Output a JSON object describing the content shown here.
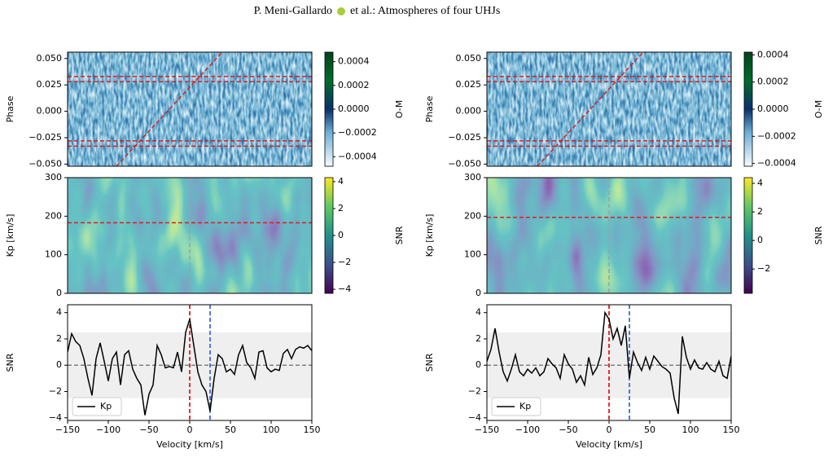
{
  "header": {
    "author": "P. Meni-Gallardo",
    "title": "et al.: Atmospheres of four UHJs"
  },
  "chart_data": [
    {
      "type": "heatmap",
      "texture": "blues",
      "ylabel": "Phase",
      "colorbar_label": "O-M",
      "xlim": [
        -150,
        150
      ],
      "ylim": [
        -0.052,
        0.056
      ],
      "yticks": [
        {
          "value": 0.05,
          "label": "0.050"
        },
        0.025,
        {
          "value": 0,
          "label": "0.000"
        },
        {
          "value": -0.025,
          "label": "−0.025"
        },
        {
          "value": -0.05,
          "label": "−0.050"
        }
      ],
      "clim": [
        -0.00048,
        0.00048
      ],
      "cticks": [
        0.0004,
        0.0002,
        {
          "value": 0,
          "label": "0.0000"
        },
        {
          "value": -0.0002,
          "label": "−0.0002"
        },
        {
          "value": -0.0004,
          "label": "−0.0004"
        }
      ],
      "hlines": [
        0.033,
        0.028,
        -0.028,
        -0.033
      ],
      "line_color": "#e41a1c",
      "track": {
        "x": [
          -90,
          40
        ],
        "y": [
          -0.052,
          0.056
        ]
      }
    },
    {
      "type": "heatmap",
      "texture": "viridis",
      "ylabel": "Kp [km/s]",
      "colorbar_label": "SNR",
      "xlim": [
        -150,
        150
      ],
      "ylim": [
        0,
        300
      ],
      "yticks": [
        0,
        100,
        200,
        300
      ],
      "clim": [
        -4.3,
        4.3
      ],
      "cticks": [
        4,
        2,
        0,
        {
          "value": -2,
          "label": "−2"
        },
        {
          "value": -4,
          "label": "−4"
        }
      ],
      "hlines": [
        183
      ],
      "line_color": "#e41a1c",
      "vlines": [
        0
      ],
      "vline_color": "#a0a0a0"
    },
    {
      "type": "line",
      "ylabel": "SNR",
      "xlabel": "Velocity [km/s]",
      "xlim": [
        -150,
        150
      ],
      "ylim": [
        -4.2,
        4.6
      ],
      "xticks": [
        {
          "value": -150,
          "label": "−150"
        },
        {
          "value": -100,
          "label": "−100"
        },
        {
          "value": -50,
          "label": "−50"
        },
        0,
        50,
        100,
        150
      ],
      "yticks": [
        {
          "value": -4,
          "label": "−4"
        },
        {
          "value": -2,
          "label": "−2"
        },
        0,
        2,
        4
      ],
      "band": [
        -2.5,
        2.5
      ],
      "hlines": [
        0
      ],
      "hline_color": "#808080",
      "vlines": [
        {
          "value": 0,
          "color": "#e41a1c"
        },
        {
          "value": 25,
          "color": "#4169e1"
        }
      ],
      "legend": "lower left",
      "x": [
        -150,
        -145,
        -140,
        -135,
        -130,
        -125,
        -120,
        -115,
        -110,
        -105,
        -100,
        -95,
        -90,
        -85,
        -80,
        -75,
        -70,
        -65,
        -60,
        -55,
        -50,
        -45,
        -40,
        -35,
        -30,
        -25,
        -20,
        -15,
        -10,
        -5,
        0,
        5,
        10,
        15,
        20,
        25,
        30,
        35,
        40,
        45,
        50,
        55,
        60,
        65,
        70,
        75,
        80,
        85,
        90,
        95,
        100,
        105,
        110,
        115,
        120,
        125,
        130,
        135,
        140,
        145,
        150
      ],
      "series": [
        {
          "name": "Kp",
          "color": "#000000",
          "values": [
            1.0,
            2.4,
            1.8,
            1.5,
            0.5,
            -1.0,
            -2.3,
            0.5,
            1.7,
            0.3,
            -1.2,
            0.5,
            1.0,
            -1.5,
            0.8,
            1.1,
            -0.3,
            -1.0,
            -1.5,
            -3.8,
            -2.2,
            -1.5,
            1.5,
            0.8,
            -0.2,
            -0.1,
            -0.2,
            1.0,
            -0.5,
            2.5,
            3.5,
            1.5,
            -0.5,
            -1.5,
            -2.0,
            -3.5,
            -1.0,
            0.8,
            0.5,
            -0.5,
            -0.3,
            -0.7,
            0.8,
            1.5,
            0.2,
            -0.2,
            -1.0,
            1.0,
            1.1,
            -0.2,
            -0.5,
            -0.3,
            -0.4,
            0.9,
            1.2,
            0.5,
            1.2,
            1.4,
            1.3,
            1.5,
            1.1
          ]
        }
      ]
    },
    {
      "type": "heatmap",
      "texture": "blues",
      "ylabel": "Phase",
      "colorbar_label": "O-M",
      "xlim": [
        -150,
        150
      ],
      "ylim": [
        -0.052,
        0.056
      ],
      "yticks": [
        {
          "value": 0.05,
          "label": "0.050"
        },
        0.025,
        {
          "value": 0,
          "label": "0.000"
        },
        {
          "value": -0.025,
          "label": "−0.025"
        },
        {
          "value": -0.05,
          "label": "−0.050"
        }
      ],
      "clim": [
        -0.00042,
        0.00042
      ],
      "cticks": [
        0.0004,
        0.0002,
        {
          "value": 0,
          "label": "0.0000"
        },
        {
          "value": -0.0002,
          "label": "−0.0002"
        },
        {
          "value": -0.0004,
          "label": "−0.0004"
        }
      ],
      "hlines": [
        0.033,
        0.028,
        -0.028,
        -0.033
      ],
      "line_color": "#e41a1c",
      "track": {
        "x": [
          -88,
          42
        ],
        "y": [
          -0.052,
          0.056
        ]
      }
    },
    {
      "type": "heatmap",
      "texture": "viridis2",
      "ylabel": "Kp [km/s]",
      "colorbar_label": "SNR",
      "xlim": [
        -150,
        150
      ],
      "ylim": [
        0,
        300
      ],
      "yticks": [
        0,
        100,
        200,
        300
      ],
      "clim": [
        -3.7,
        4.4
      ],
      "cticks": [
        4,
        2,
        0,
        {
          "value": -2,
          "label": "−2"
        }
      ],
      "hlines": [
        197
      ],
      "line_color": "#e41a1c",
      "vlines": [
        0
      ],
      "vline_color": "#a0a0a0"
    },
    {
      "type": "line",
      "ylabel": "SNR",
      "xlabel": "Velocity [km/s]",
      "xlim": [
        -150,
        150
      ],
      "ylim": [
        -4.2,
        4.6
      ],
      "xticks": [
        {
          "value": -150,
          "label": "−150"
        },
        {
          "value": -100,
          "label": "−100"
        },
        {
          "value": -50,
          "label": "−50"
        },
        0,
        50,
        100,
        150
      ],
      "yticks": [
        {
          "value": -4,
          "label": "−4"
        },
        {
          "value": -2,
          "label": "−2"
        },
        0,
        2,
        4
      ],
      "band": [
        -2.5,
        2.5
      ],
      "hlines": [
        0
      ],
      "hline_color": "#808080",
      "vlines": [
        {
          "value": 0,
          "color": "#e41a1c"
        },
        {
          "value": 25,
          "color": "#4169e1"
        }
      ],
      "legend": "lower left",
      "x": [
        -150,
        -145,
        -140,
        -135,
        -130,
        -125,
        -120,
        -115,
        -110,
        -105,
        -100,
        -95,
        -90,
        -85,
        -80,
        -75,
        -70,
        -65,
        -60,
        -55,
        -50,
        -45,
        -40,
        -35,
        -30,
        -25,
        -20,
        -15,
        -10,
        -5,
        0,
        5,
        10,
        15,
        20,
        25,
        30,
        35,
        40,
        45,
        50,
        55,
        60,
        65,
        70,
        75,
        80,
        85,
        90,
        95,
        100,
        105,
        110,
        115,
        120,
        125,
        130,
        135,
        140,
        145,
        150
      ],
      "series": [
        {
          "name": "Kp",
          "color": "#000000",
          "values": [
            0.3,
            1.2,
            2.8,
            1.0,
            -0.5,
            -1.2,
            -0.3,
            0.8,
            -0.5,
            -0.8,
            -0.3,
            -0.6,
            -0.2,
            -0.8,
            -0.5,
            0.5,
            0.1,
            -0.2,
            -1.0,
            0.8,
            0.1,
            -0.3,
            -1.3,
            -0.8,
            -1.5,
            0.6,
            -0.7,
            -0.2,
            0.8,
            4.0,
            3.5,
            2.0,
            2.8,
            1.5,
            3.0,
            -1.0,
            1.0,
            0.2,
            -0.4,
            0.6,
            -0.3,
            0.7,
            0.3,
            -0.1,
            -0.3,
            -0.6,
            -2.5,
            -3.7,
            2.2,
            0.6,
            -0.3,
            0.4,
            -0.2,
            -0.3,
            0.2,
            -0.3,
            -0.5,
            0.3,
            -0.8,
            -1.0,
            0.7
          ]
        }
      ]
    }
  ]
}
